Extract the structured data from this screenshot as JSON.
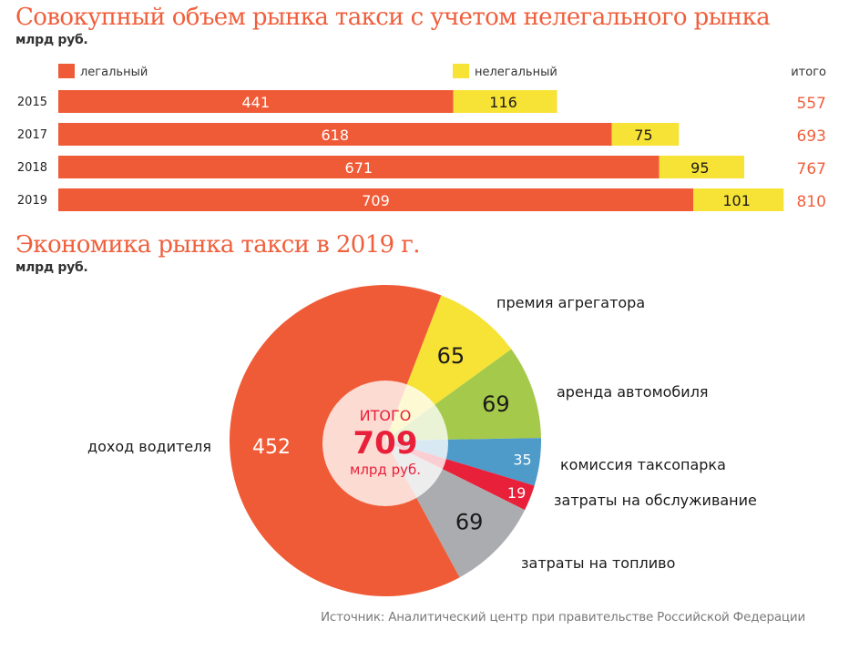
{
  "chart_data": [
    {
      "type": "bar",
      "orientation": "horizontal",
      "stacked": true,
      "title": "Совокупный объем рынка такси с учетом нелегального рынка",
      "unit": "млрд руб.",
      "categories": [
        "2015",
        "2017",
        "2018",
        "2019"
      ],
      "series": [
        {
          "name": "легальный",
          "color": "#F05B37",
          "values": [
            441,
            618,
            671,
            709
          ]
        },
        {
          "name": "нелегальный",
          "color": "#F7E236",
          "values": [
            116,
            75,
            95,
            101
          ]
        }
      ],
      "totals_label": "итого",
      "totals": [
        557,
        693,
        767,
        810
      ],
      "legend": "top",
      "xlim": [
        0,
        810
      ]
    },
    {
      "type": "pie",
      "title": "Экономика рынка такси в 2019 г.",
      "unit": "млрд руб.",
      "center_label": {
        "top": "ИТОГО",
        "value": "709",
        "bottom": "млрд руб."
      },
      "total": 709,
      "start_angle_deg": 21,
      "slices": [
        {
          "label": "премия агрегатора",
          "value": 65,
          "color": "#F7E236",
          "value_color": "#1a1a1a"
        },
        {
          "label": "аренда автомобиля",
          "value": 69,
          "color": "#A5C94A",
          "value_color": "#1a1a1a"
        },
        {
          "label": "комиссия таксопарка",
          "value": 35,
          "color": "#4E9AC8",
          "value_color": "#ffffff"
        },
        {
          "label": "затраты на обслуживание",
          "value": 19,
          "color": "#E8203A",
          "value_color": "#ffffff"
        },
        {
          "label": "затраты на топливо",
          "value": 69,
          "color": "#ABACAF",
          "value_color": "#1a1a1a"
        },
        {
          "label": "доход водителя",
          "value": 452,
          "color": "#F05B37",
          "value_color": "#ffffff"
        }
      ]
    }
  ],
  "source": "Источник: Аналитический центр при правительстве Российской Федерации",
  "colors": {
    "title": "#EF5F3C",
    "total": "#EF5F3C",
    "center_text": "#E8203A"
  }
}
